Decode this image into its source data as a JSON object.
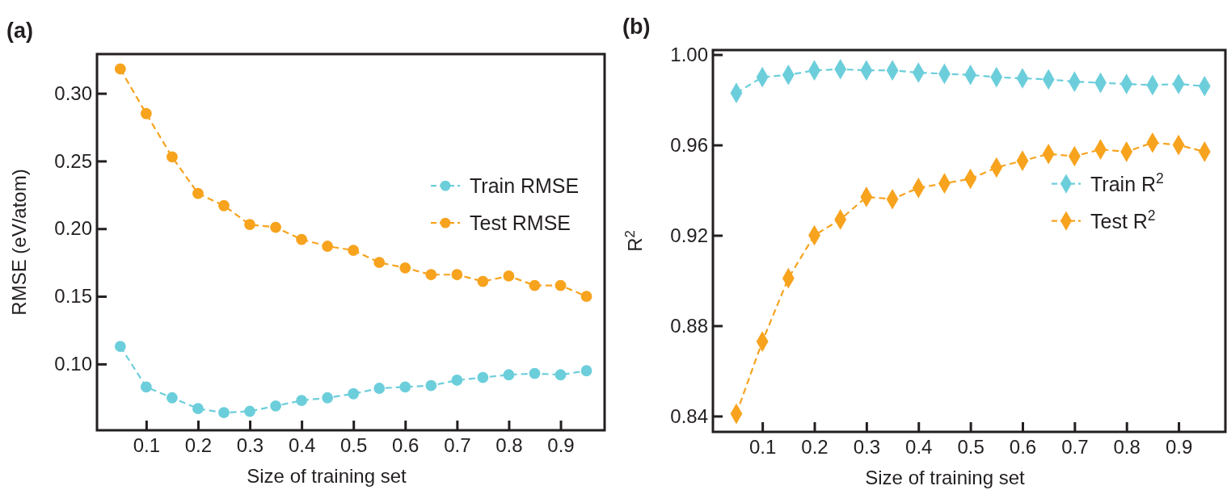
{
  "chart_data": [
    {
      "type": "line",
      "title": "(a)",
      "xlabel": "Size of training set",
      "ylabel": "RMSE (eV/atom)",
      "x": [
        0.05,
        0.1,
        0.15,
        0.2,
        0.25,
        0.3,
        0.35,
        0.4,
        0.45,
        0.5,
        0.55,
        0.6,
        0.65,
        0.7,
        0.75,
        0.8,
        0.85,
        0.9,
        0.95
      ],
      "xlim": [
        0.005,
        0.985
      ],
      "xticks": [
        0.1,
        0.2,
        0.3,
        0.4,
        0.5,
        0.6,
        0.7,
        0.8,
        0.9
      ],
      "ylim": [
        0.051,
        0.329
      ],
      "yticks": [
        {
          "value": 0.1,
          "label": "0.10"
        },
        0.15,
        {
          "value": 0.2,
          "label": "0.20"
        },
        0.25,
        {
          "value": 0.3,
          "label": "0.30"
        }
      ],
      "marker": "circle",
      "line_style": "dashed",
      "legend": "right",
      "grid": false,
      "series": [
        {
          "name": "Train RMSE",
          "color": "#6ccedb",
          "values": [
            0.113,
            0.083,
            0.075,
            0.067,
            0.064,
            0.065,
            0.069,
            0.073,
            0.075,
            0.078,
            0.082,
            0.083,
            0.084,
            0.088,
            0.09,
            0.092,
            0.093,
            0.092,
            0.095
          ]
        },
        {
          "name": "Test RMSE",
          "color": "#f7a31e",
          "values": [
            0.318,
            0.285,
            0.253,
            0.226,
            0.217,
            0.203,
            0.201,
            0.192,
            0.187,
            0.184,
            0.175,
            0.171,
            0.166,
            0.166,
            0.161,
            0.165,
            0.158,
            0.158,
            0.15
          ]
        }
      ]
    },
    {
      "type": "line",
      "title": "(b)",
      "xlabel": "Size of training set",
      "ylabel": "R$^{2}$",
      "x": [
        0.05,
        0.1,
        0.15,
        0.2,
        0.25,
        0.3,
        0.35,
        0.4,
        0.45,
        0.5,
        0.55,
        0.6,
        0.65,
        0.7,
        0.75,
        0.8,
        0.85,
        0.9,
        0.95
      ],
      "xlim": [
        0.005,
        0.99
      ],
      "xticks": [
        0.1,
        0.2,
        0.3,
        0.4,
        0.5,
        0.6,
        0.7,
        0.8,
        0.9
      ],
      "ylim": [
        0.833,
        1.002
      ],
      "yticks": [
        0.84,
        0.88,
        0.92,
        0.96,
        {
          "value": 1.0,
          "label": "1.00"
        }
      ],
      "marker": "diamond",
      "line_style": "dashed",
      "legend": "right",
      "grid": false,
      "series": [
        {
          "name": "Train R$^{2}$",
          "color": "#6ccedb",
          "values": [
            0.983,
            0.99,
            0.991,
            0.993,
            0.9935,
            0.993,
            0.993,
            0.992,
            0.9915,
            0.991,
            0.99,
            0.9895,
            0.989,
            0.988,
            0.9875,
            0.987,
            0.9865,
            0.987,
            0.986
          ]
        },
        {
          "name": "Test R$^{2}$",
          "color": "#f7a31e",
          "values": [
            0.841,
            0.873,
            0.901,
            0.92,
            0.927,
            0.937,
            0.936,
            0.941,
            0.943,
            0.945,
            0.95,
            0.953,
            0.956,
            0.955,
            0.958,
            0.957,
            0.961,
            0.96,
            0.957
          ]
        }
      ]
    }
  ]
}
